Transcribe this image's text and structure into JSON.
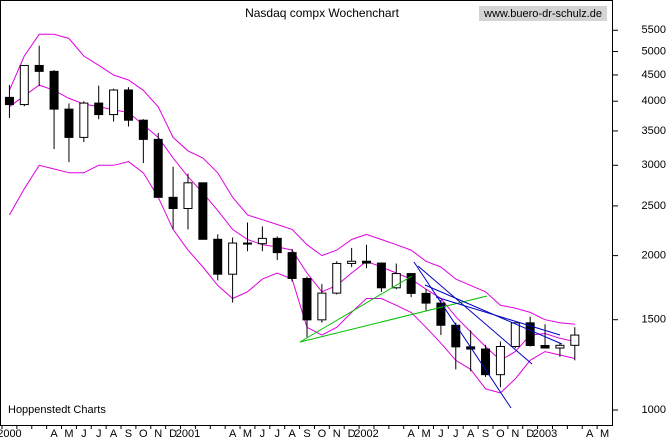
{
  "chart_data": {
    "type": "candlestick",
    "title": "Nasdaq compx Wochenchart",
    "watermark": "www.buero-dr-schulz.de",
    "source": "Hoppenstedt Charts",
    "log_scale": true,
    "ylim": [
      935,
      6300
    ],
    "yticks": [
      1000,
      1500,
      2000,
      2500,
      3000,
      3500,
      4000,
      4500,
      5000,
      5500
    ],
    "categories": [
      "2000",
      null,
      null,
      "A",
      "M",
      "J",
      "J",
      "A",
      "S",
      "O",
      "N",
      "D",
      "2001",
      null,
      null,
      "A",
      "M",
      "J",
      "J",
      "A",
      "S",
      "O",
      "N",
      "D",
      "2002",
      null,
      null,
      "A",
      "M",
      "J",
      "J",
      "A",
      "S",
      "O",
      "N",
      "D",
      "2003",
      null,
      null,
      "A",
      "M"
    ],
    "candle_color": "#000000",
    "open": [
      4069,
      3940,
      4696,
      4573,
      3860,
      3400,
      3966,
      3767,
      4206,
      3673,
      3370,
      2598,
      2471,
      2773,
      2152,
      1840,
      2116,
      2110,
      2161,
      2027,
      1805,
      1499,
      1690,
      1931,
      1950,
      1934,
      1731,
      1845,
      1688,
      1616,
      1463,
      1328,
      1315,
      1172,
      1330,
      1479,
      1336,
      1321,
      1337,
      null,
      null
    ],
    "high": [
      4303,
      4696,
      5132,
      4600,
      3960,
      4000,
      4290,
      4230,
      4260,
      3690,
      3470,
      2980,
      2890,
      2770,
      2200,
      2170,
      2320,
      2280,
      2180,
      2060,
      1820,
      1760,
      1950,
      2070,
      2100,
      1940,
      1930,
      1850,
      1720,
      1640,
      1480,
      1430,
      1340,
      1360,
      1480,
      1520,
      1470,
      1350,
      1450,
      null,
      null
    ],
    "low": [
      3711,
      3910,
      4284,
      3227,
      3043,
      3330,
      3690,
      3650,
      3570,
      3030,
      2600,
      2250,
      2250,
      2150,
      1790,
      1620,
      2040,
      2040,
      1960,
      1780,
      1387,
      1480,
      1680,
      1900,
      1890,
      1700,
      1720,
      1660,
      1560,
      1400,
      1200,
      1190,
      1160,
      1108,
      1320,
      1330,
      1320,
      1270,
      1250,
      null,
      null
    ],
    "close": [
      3940,
      4696,
      4573,
      3860,
      3400,
      3966,
      3767,
      4206,
      3673,
      3370,
      2598,
      2471,
      2773,
      2152,
      1840,
      2116,
      2110,
      2161,
      2027,
      1805,
      1499,
      1690,
      1931,
      1950,
      1934,
      1731,
      1845,
      1688,
      1616,
      1463,
      1328,
      1315,
      1172,
      1330,
      1479,
      1336,
      1321,
      1337,
      1400,
      null,
      null
    ],
    "bands": [
      {
        "color": "#e000e0",
        "values": [
          4200,
          4900,
          5400,
          5400,
          5300,
          4900,
          4700,
          4500,
          4400,
          4200,
          3900,
          3400,
          3200,
          3100,
          2900,
          2600,
          2400,
          2350,
          2300,
          2250,
          2100,
          2000,
          2050,
          2150,
          2200,
          2150,
          2100,
          2050,
          1950,
          1900,
          1800,
          1750,
          1700,
          1600,
          1580,
          1550,
          1500,
          1480,
          1470,
          null,
          null
        ]
      },
      {
        "color": "#e000e0",
        "values": [
          3900,
          4100,
          4300,
          4200,
          4050,
          3950,
          3900,
          3850,
          3800,
          3600,
          3400,
          3100,
          2850,
          2650,
          2450,
          2250,
          2150,
          2100,
          2080,
          2050,
          1850,
          1700,
          1750,
          1850,
          1950,
          1900,
          1850,
          1800,
          1720,
          1650,
          1520,
          1420,
          1330,
          1250,
          1300,
          1400,
          1410,
          1380,
          1360,
          null,
          null
        ]
      },
      {
        "color": "#e000e0",
        "values": [
          2400,
          2700,
          3000,
          2950,
          2900,
          2900,
          3000,
          3000,
          3050,
          2900,
          2600,
          2250,
          2050,
          1900,
          1750,
          1650,
          1700,
          1800,
          1850,
          1800,
          1450,
          1400,
          1450,
          1550,
          1650,
          1650,
          1600,
          1550,
          1450,
          1350,
          1250,
          1200,
          1100,
          1080,
          1150,
          1250,
          1300,
          1280,
          1260,
          null,
          null
        ]
      }
    ]
  }
}
